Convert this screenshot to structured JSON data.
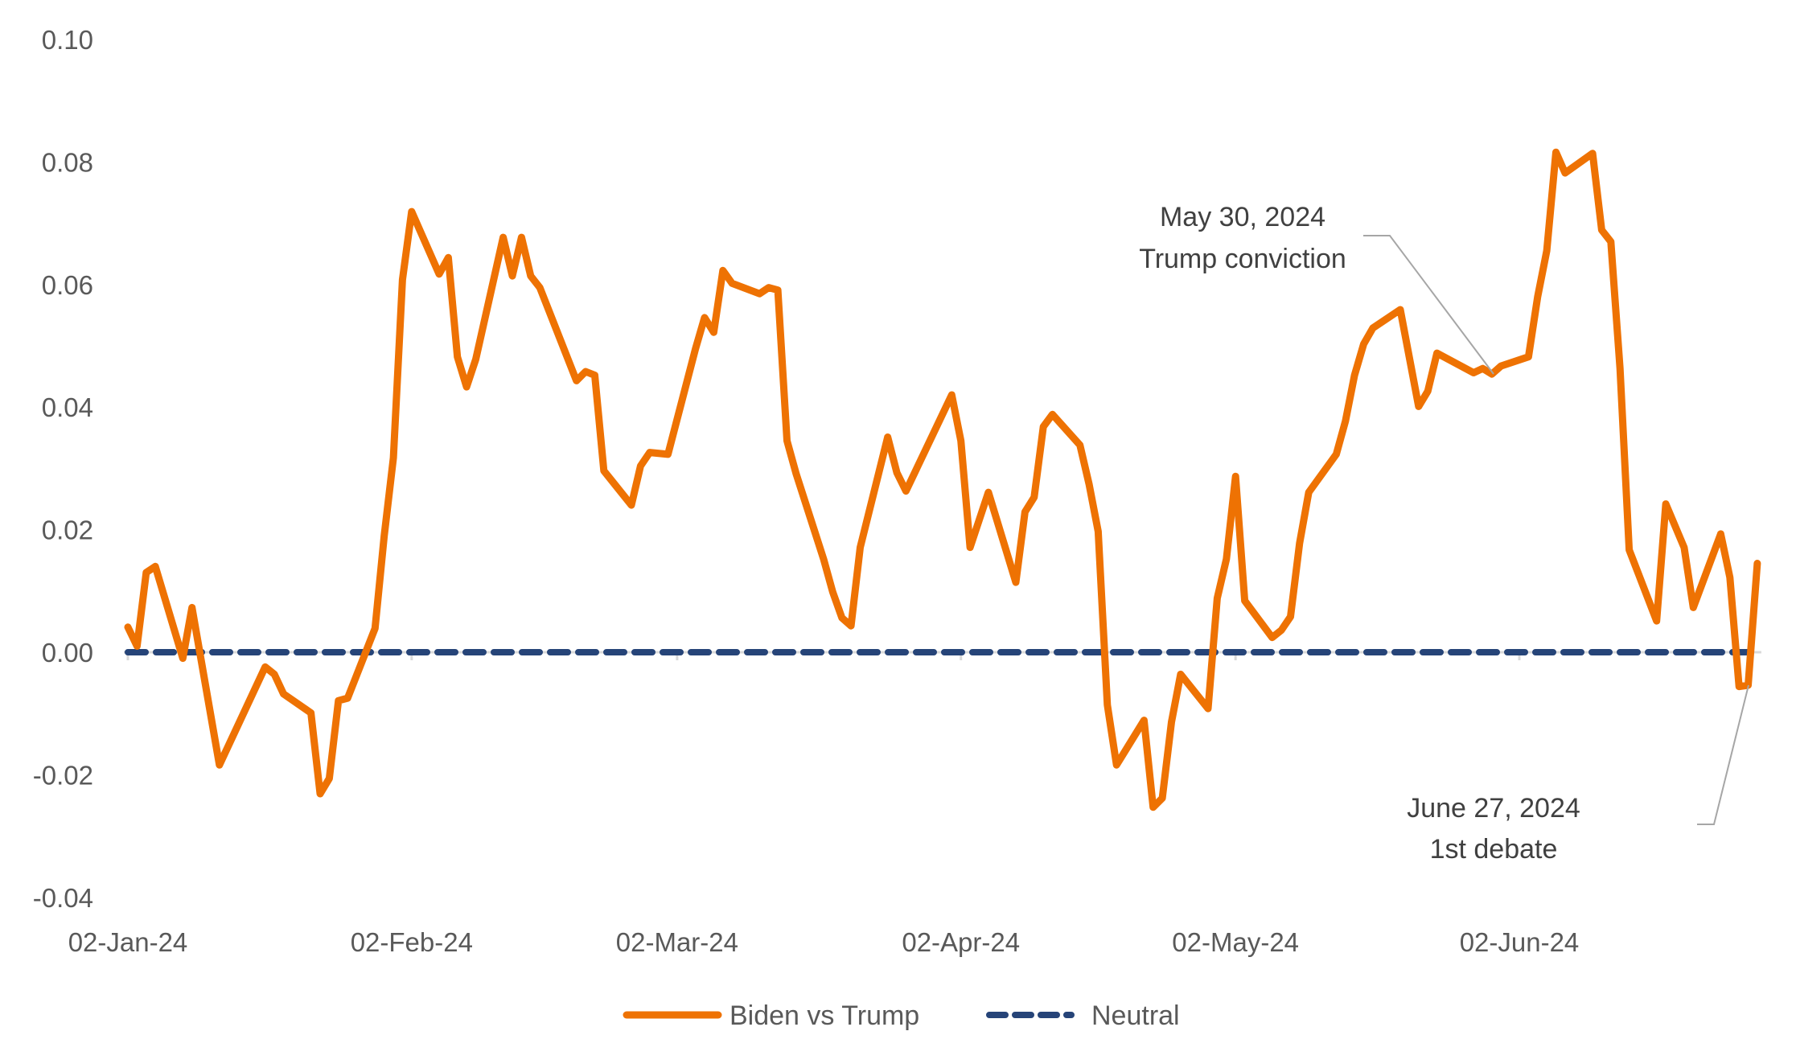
{
  "chart_data": {
    "type": "line",
    "title": "",
    "xlabel": "",
    "ylabel": "",
    "x_unit": "days since 02-Jan-24",
    "ylim": [
      -0.04,
      0.1
    ],
    "yticks": [
      0.1,
      0.08,
      0.06,
      0.04,
      0.02,
      0.0,
      -0.02,
      -0.04
    ],
    "ytick_labels": [
      "0.10",
      "0.08",
      "0.06",
      "0.04",
      "0.02",
      "0.00",
      "-0.02",
      "-0.04"
    ],
    "xticks": [
      0,
      31,
      60,
      91,
      121,
      152
    ],
    "xtick_labels": [
      "02-Jan-24",
      "02-Feb-24",
      "02-Mar-24",
      "02-Apr-24",
      "02-May-24",
      "02-Jun-24"
    ],
    "grid": false,
    "legend_position": "bottom",
    "series": [
      {
        "name": "Biden vs Trump",
        "color": "#EE7203",
        "style": "solid",
        "x": [
          0,
          1,
          2,
          3,
          6,
          7,
          10,
          15,
          16,
          17,
          20,
          21,
          22,
          23,
          24,
          27,
          28,
          29,
          30,
          31,
          34,
          35,
          36,
          37,
          38,
          41,
          42,
          43,
          44,
          45,
          49,
          50,
          51,
          52,
          55,
          56,
          57,
          59,
          62,
          63,
          64,
          65,
          66,
          69,
          70,
          71,
          72,
          73,
          76,
          77,
          78,
          79,
          80,
          83,
          84,
          85,
          90,
          91,
          92,
          94,
          97,
          98,
          99,
          100,
          101,
          104,
          105,
          106,
          107,
          108,
          111,
          112,
          113,
          114,
          115,
          118,
          119,
          120,
          121,
          122,
          125,
          126,
          127,
          128,
          129,
          132,
          133,
          134,
          135,
          136,
          139,
          141,
          142,
          143,
          147,
          148,
          149,
          150,
          153,
          154,
          155,
          156,
          157,
          160,
          161,
          162,
          163,
          164,
          167,
          168,
          170,
          171,
          174,
          175,
          176,
          177,
          178
        ],
        "values": [
          0.0041,
          0.001,
          0.013,
          0.014,
          -0.001,
          0.0073,
          -0.0184,
          -0.0024,
          -0.0036,
          -0.0068,
          -0.0099,
          -0.0231,
          -0.0206,
          -0.0079,
          -0.0075,
          0.0039,
          0.019,
          0.0317,
          0.0608,
          0.0719,
          0.0617,
          0.0644,
          0.0482,
          0.0433,
          0.0478,
          0.0677,
          0.0614,
          0.0677,
          0.0614,
          0.0595,
          0.0443,
          0.0458,
          0.0452,
          0.0296,
          0.024,
          0.0304,
          0.0326,
          0.0323,
          0.0495,
          0.0546,
          0.0522,
          0.0623,
          0.0602,
          0.0585,
          0.0595,
          0.0591,
          0.0345,
          0.0291,
          0.0152,
          0.0098,
          0.0056,
          0.0043,
          0.0171,
          0.0351,
          0.0293,
          0.0263,
          0.042,
          0.0345,
          0.0171,
          0.0261,
          0.0114,
          0.0229,
          0.0253,
          0.0368,
          0.0388,
          0.0338,
          0.0274,
          0.0197,
          -0.0086,
          -0.0184,
          -0.0111,
          -0.0253,
          -0.0238,
          -0.0114,
          -0.0036,
          -0.0092,
          0.0088,
          0.0152,
          0.0287,
          0.0084,
          0.0024,
          0.0036,
          0.0058,
          0.0178,
          0.0261,
          0.0323,
          0.0377,
          0.0452,
          0.0503,
          0.0529,
          0.0559,
          0.0401,
          0.0426,
          0.0488,
          0.0456,
          0.0463,
          0.0454,
          0.0467,
          0.0482,
          0.058,
          0.0655,
          0.0816,
          0.0782,
          0.0814,
          0.0689,
          0.067,
          0.0463,
          0.0167,
          0.0051,
          0.0242,
          0.0171,
          0.0073,
          0.0193,
          0.0122,
          -0.0056,
          -0.0054,
          0.0145
        ]
      },
      {
        "name": "Neutral",
        "color": "#264478",
        "style": "dashed",
        "x": [
          0,
          178
        ],
        "values": [
          0,
          0
        ]
      }
    ],
    "annotations": [
      {
        "line1": "May 30, 2024",
        "line2": "Trump conviction",
        "x": 149,
        "y": 0.0454
      },
      {
        "line1": "June 27, 2024",
        "line2": "1st debate",
        "x": 176,
        "y": -0.0056
      }
    ]
  }
}
